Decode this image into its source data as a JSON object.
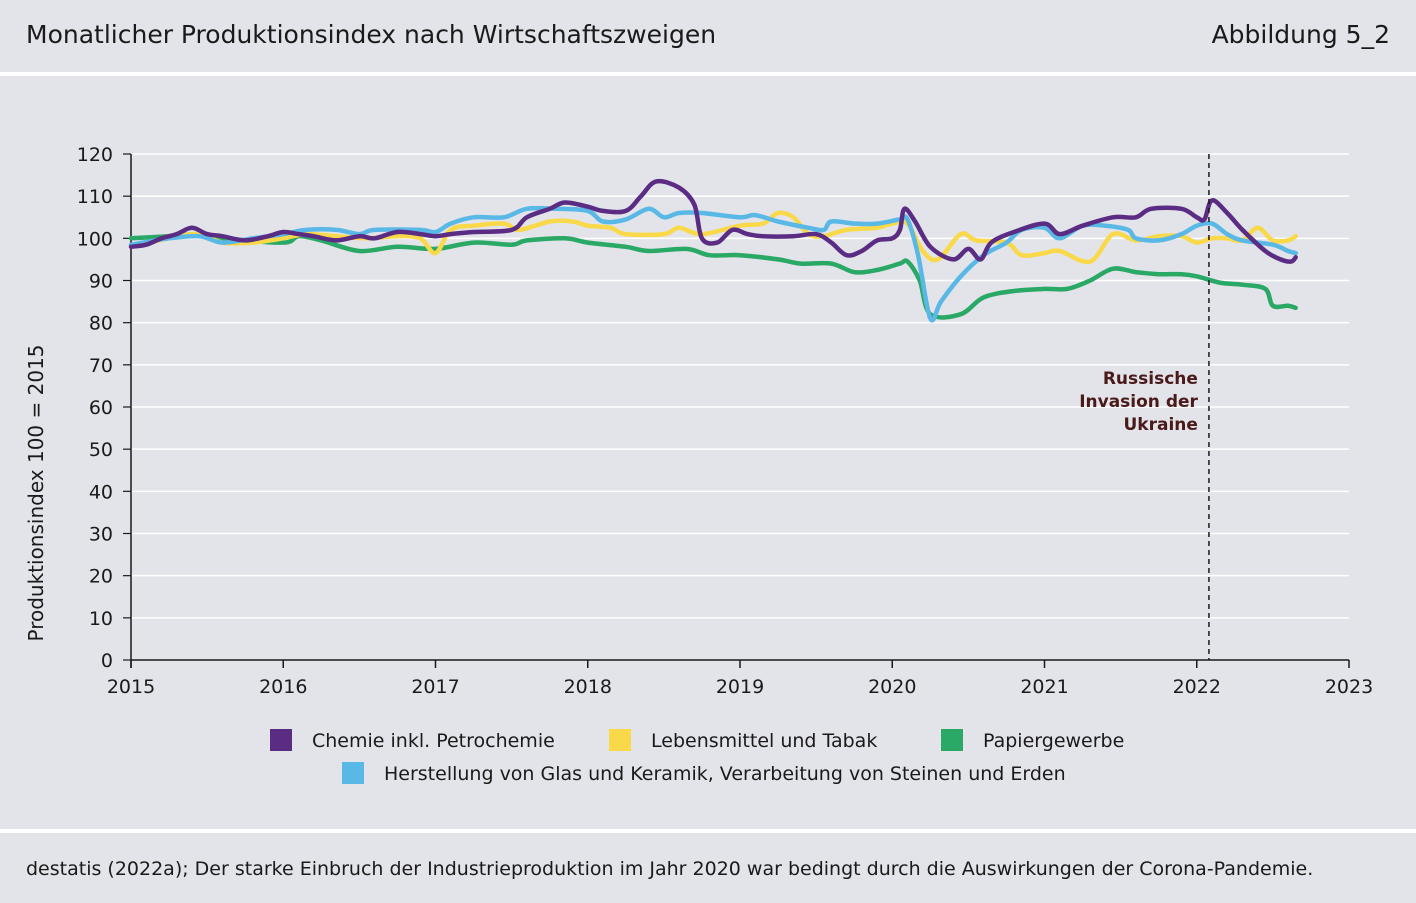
{
  "header": {
    "title": "Monatlicher Produktionsindex nach Wirtschaftszweigen",
    "figure_number": "Abbildung 5_2"
  },
  "footer": {
    "source": "destatis (2022a); Der starke Einbruch der Industrieproduktion im Jahr 2020 war bedingt durch die Auswirkungen der Corona-Pandemie."
  },
  "colors": {
    "chemie": "#5b2c83",
    "lebensmittel": "#f9d94a",
    "papier": "#2aa866",
    "glas": "#5ab8e6",
    "background": "#e3e4e9",
    "annotation": "#4a1a1a"
  },
  "chart_data": {
    "type": "line",
    "title": "Monatlicher Produktionsindex nach Wirtschaftszweigen",
    "ylabel": "Produktionsindex 100 = 2015",
    "xlabel": "",
    "xlim": [
      2015,
      2023
    ],
    "ylim": [
      0,
      120
    ],
    "xticks": [
      "2015",
      "2016",
      "2017",
      "2018",
      "2019",
      "2020",
      "2021",
      "2022",
      "2023"
    ],
    "yticks": [
      0,
      10,
      20,
      30,
      40,
      50,
      60,
      70,
      80,
      90,
      100,
      110,
      120
    ],
    "grid": true,
    "annotation": {
      "x": 2022.08,
      "lines": [
        "Russische",
        "Invasion der",
        "Ukraine"
      ]
    },
    "series": [
      {
        "name": "Papiergewerbe",
        "color": "#2aa866",
        "points": [
          [
            2015.0,
            100
          ],
          [
            2015.25,
            100.5
          ],
          [
            2015.45,
            101
          ],
          [
            2015.6,
            100
          ],
          [
            2016.0,
            99
          ],
          [
            2016.1,
            100.5
          ],
          [
            2016.25,
            99.5
          ],
          [
            2016.5,
            97
          ],
          [
            2016.75,
            98
          ],
          [
            2017.0,
            97.5
          ],
          [
            2017.25,
            99
          ],
          [
            2017.5,
            98.5
          ],
          [
            2017.6,
            99.5
          ],
          [
            2017.85,
            100
          ],
          [
            2018.0,
            99
          ],
          [
            2018.25,
            98
          ],
          [
            2018.4,
            97
          ],
          [
            2018.65,
            97.5
          ],
          [
            2018.8,
            96
          ],
          [
            2019.0,
            96
          ],
          [
            2019.25,
            95
          ],
          [
            2019.4,
            94
          ],
          [
            2019.6,
            94
          ],
          [
            2019.75,
            92
          ],
          [
            2019.9,
            92.5
          ],
          [
            2020.05,
            94
          ],
          [
            2020.1,
            94.5
          ],
          [
            2020.18,
            90
          ],
          [
            2020.25,
            82
          ],
          [
            2020.45,
            82
          ],
          [
            2020.6,
            86
          ],
          [
            2020.8,
            87.5
          ],
          [
            2021.0,
            88
          ],
          [
            2021.15,
            88
          ],
          [
            2021.3,
            90
          ],
          [
            2021.45,
            92.8
          ],
          [
            2021.6,
            92
          ],
          [
            2021.75,
            91.5
          ],
          [
            2021.9,
            91.5
          ],
          [
            2022.0,
            91
          ],
          [
            2022.15,
            89.5
          ],
          [
            2022.3,
            89
          ],
          [
            2022.45,
            88
          ],
          [
            2022.5,
            84
          ],
          [
            2022.6,
            84
          ],
          [
            2022.65,
            83.5
          ]
        ]
      },
      {
        "name": "Lebensmittel und Tabak",
        "color": "#f9d94a",
        "points": [
          [
            2015.0,
            98
          ],
          [
            2015.25,
            100
          ],
          [
            2015.45,
            101
          ],
          [
            2015.6,
            99
          ],
          [
            2015.8,
            99
          ],
          [
            2016.0,
            100
          ],
          [
            2016.15,
            101
          ],
          [
            2016.35,
            100.5
          ],
          [
            2016.55,
            100
          ],
          [
            2016.75,
            100.5
          ],
          [
            2016.9,
            100
          ],
          [
            2017.0,
            96.5
          ],
          [
            2017.1,
            102
          ],
          [
            2017.25,
            103
          ],
          [
            2017.45,
            103.5
          ],
          [
            2017.55,
            102
          ],
          [
            2017.75,
            104
          ],
          [
            2017.9,
            104
          ],
          [
            2018.0,
            103
          ],
          [
            2018.15,
            102.5
          ],
          [
            2018.25,
            101
          ],
          [
            2018.5,
            101
          ],
          [
            2018.6,
            102.5
          ],
          [
            2018.75,
            101
          ],
          [
            2019.0,
            103
          ],
          [
            2019.15,
            103.5
          ],
          [
            2019.25,
            106
          ],
          [
            2019.35,
            105
          ],
          [
            2019.45,
            101
          ],
          [
            2019.55,
            100.5
          ],
          [
            2019.7,
            102
          ],
          [
            2019.9,
            102.5
          ],
          [
            2020.0,
            103.5
          ],
          [
            2020.1,
            103.5
          ],
          [
            2020.2,
            97
          ],
          [
            2020.3,
            95
          ],
          [
            2020.45,
            101
          ],
          [
            2020.55,
            99.5
          ],
          [
            2020.75,
            99
          ],
          [
            2020.85,
            96
          ],
          [
            2021.0,
            96.5
          ],
          [
            2021.1,
            97
          ],
          [
            2021.3,
            94.5
          ],
          [
            2021.45,
            101
          ],
          [
            2021.6,
            99.5
          ],
          [
            2021.75,
            100.5
          ],
          [
            2021.9,
            100.5
          ],
          [
            2022.0,
            99
          ],
          [
            2022.1,
            100
          ],
          [
            2022.2,
            100
          ],
          [
            2022.3,
            99.5
          ],
          [
            2022.4,
            102.5
          ],
          [
            2022.5,
            99.5
          ],
          [
            2022.6,
            99.5
          ],
          [
            2022.65,
            100.5
          ]
        ]
      },
      {
        "name": "Herstellung von Glas und Keramik, Verarbeitung von Steinen und Erden",
        "color": "#5ab8e6",
        "points": [
          [
            2015.0,
            98.5
          ],
          [
            2015.25,
            100
          ],
          [
            2015.45,
            100.5
          ],
          [
            2015.6,
            99
          ],
          [
            2015.8,
            100
          ],
          [
            2016.0,
            101
          ],
          [
            2016.15,
            102
          ],
          [
            2016.35,
            102
          ],
          [
            2016.5,
            101
          ],
          [
            2016.6,
            102
          ],
          [
            2016.9,
            102
          ],
          [
            2017.0,
            101.5
          ],
          [
            2017.1,
            103.5
          ],
          [
            2017.25,
            105
          ],
          [
            2017.45,
            105
          ],
          [
            2017.6,
            107
          ],
          [
            2017.8,
            107
          ],
          [
            2018.0,
            106.5
          ],
          [
            2018.1,
            104
          ],
          [
            2018.25,
            104.5
          ],
          [
            2018.4,
            107
          ],
          [
            2018.5,
            105
          ],
          [
            2018.6,
            106
          ],
          [
            2018.75,
            106
          ],
          [
            2019.0,
            105
          ],
          [
            2019.1,
            105.5
          ],
          [
            2019.25,
            104
          ],
          [
            2019.45,
            102.5
          ],
          [
            2019.55,
            102
          ],
          [
            2019.6,
            104
          ],
          [
            2019.75,
            103.5
          ],
          [
            2019.9,
            103.5
          ],
          [
            2020.05,
            104.5
          ],
          [
            2020.1,
            104.5
          ],
          [
            2020.17,
            96
          ],
          [
            2020.25,
            81
          ],
          [
            2020.32,
            85
          ],
          [
            2020.45,
            91
          ],
          [
            2020.6,
            96
          ],
          [
            2020.75,
            99
          ],
          [
            2020.85,
            102
          ],
          [
            2021.0,
            102.5
          ],
          [
            2021.1,
            100
          ],
          [
            2021.25,
            103
          ],
          [
            2021.4,
            103
          ],
          [
            2021.55,
            102
          ],
          [
            2021.6,
            100
          ],
          [
            2021.75,
            99.5
          ],
          [
            2021.9,
            101
          ],
          [
            2022.0,
            103
          ],
          [
            2022.1,
            103.5
          ],
          [
            2022.2,
            101
          ],
          [
            2022.3,
            99.5
          ],
          [
            2022.5,
            98.5
          ],
          [
            2022.6,
            97
          ],
          [
            2022.65,
            96.5
          ]
        ]
      },
      {
        "name": "Chemie inkl. Petrochemie",
        "color": "#5b2c83",
        "points": [
          [
            2015.0,
            98
          ],
          [
            2015.1,
            98.5
          ],
          [
            2015.2,
            100
          ],
          [
            2015.3,
            101
          ],
          [
            2015.4,
            102.5
          ],
          [
            2015.5,
            101
          ],
          [
            2015.6,
            100.5
          ],
          [
            2015.75,
            99.5
          ],
          [
            2015.9,
            100.5
          ],
          [
            2016.0,
            101.5
          ],
          [
            2016.1,
            101
          ],
          [
            2016.2,
            100.5
          ],
          [
            2016.35,
            99.5
          ],
          [
            2016.5,
            100.5
          ],
          [
            2016.6,
            100
          ],
          [
            2016.75,
            101.5
          ],
          [
            2016.9,
            101
          ],
          [
            2017.0,
            100.5
          ],
          [
            2017.1,
            101
          ],
          [
            2017.25,
            101.5
          ],
          [
            2017.5,
            102
          ],
          [
            2017.6,
            105
          ],
          [
            2017.75,
            107
          ],
          [
            2017.85,
            108.5
          ],
          [
            2018.0,
            107.5
          ],
          [
            2018.1,
            106.5
          ],
          [
            2018.25,
            106.5
          ],
          [
            2018.35,
            110
          ],
          [
            2018.45,
            113.5
          ],
          [
            2018.6,
            112
          ],
          [
            2018.7,
            108
          ],
          [
            2018.75,
            100
          ],
          [
            2018.85,
            99
          ],
          [
            2018.95,
            102
          ],
          [
            2019.05,
            101
          ],
          [
            2019.15,
            100.5
          ],
          [
            2019.35,
            100.5
          ],
          [
            2019.5,
            101
          ],
          [
            2019.6,
            99
          ],
          [
            2019.7,
            96
          ],
          [
            2019.8,
            97
          ],
          [
            2019.9,
            99.5
          ],
          [
            2020.0,
            100
          ],
          [
            2020.05,
            102
          ],
          [
            2020.08,
            107
          ],
          [
            2020.15,
            104
          ],
          [
            2020.25,
            98
          ],
          [
            2020.4,
            95
          ],
          [
            2020.5,
            97.5
          ],
          [
            2020.58,
            95
          ],
          [
            2020.65,
            99
          ],
          [
            2020.8,
            101.5
          ],
          [
            2021.0,
            103.5
          ],
          [
            2021.1,
            101
          ],
          [
            2021.25,
            103
          ],
          [
            2021.45,
            105
          ],
          [
            2021.6,
            105
          ],
          [
            2021.7,
            107
          ],
          [
            2021.9,
            107
          ],
          [
            2022.0,
            105
          ],
          [
            2022.05,
            104.5
          ],
          [
            2022.1,
            109
          ],
          [
            2022.2,
            106
          ],
          [
            2022.3,
            102
          ],
          [
            2022.45,
            97
          ],
          [
            2022.55,
            95
          ],
          [
            2022.62,
            94.5
          ],
          [
            2022.65,
            95.5
          ]
        ]
      }
    ],
    "legend": {
      "position": "bottom",
      "items": [
        {
          "label": "Chemie inkl. Petrochemie",
          "color": "#5b2c83"
        },
        {
          "label": "Lebensmittel und Tabak",
          "color": "#f9d94a"
        },
        {
          "label": "Papiergewerbe",
          "color": "#2aa866"
        },
        {
          "label": "Herstellung von Glas und Keramik, Verarbeitung von Steinen und Erden",
          "color": "#5ab8e6"
        }
      ]
    }
  }
}
